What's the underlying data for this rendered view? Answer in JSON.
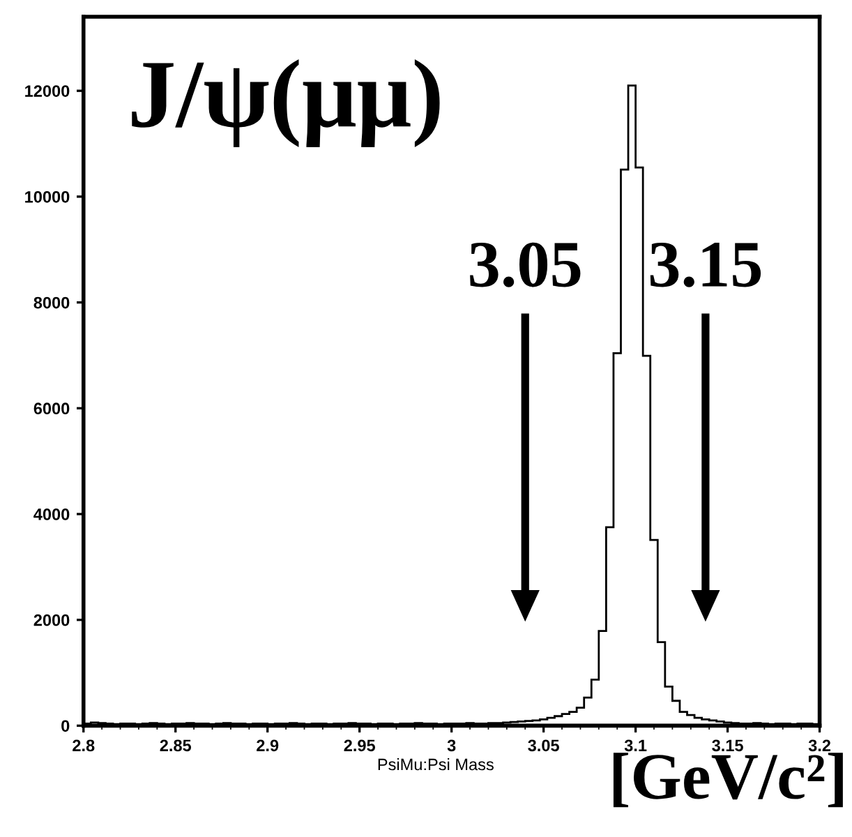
{
  "chart_data": {
    "type": "histogram",
    "title": "J/ψ(μμ)",
    "xlabel": "PsiMu:Psi Mass",
    "annotations": [
      "3.05",
      "3.15",
      "[GeV/c²]"
    ],
    "bins": [
      2.8,
      2.804,
      2.808,
      2.812,
      2.816,
      2.82,
      2.824,
      2.828,
      2.832,
      2.836,
      2.84,
      2.844,
      2.848,
      2.852,
      2.856,
      2.86,
      2.864,
      2.868,
      2.872,
      2.876,
      2.88,
      2.884,
      2.888,
      2.892,
      2.896,
      2.9,
      2.904,
      2.908,
      2.912,
      2.916,
      2.92,
      2.924,
      2.928,
      2.932,
      2.936,
      2.94,
      2.944,
      2.948,
      2.952,
      2.956,
      2.96,
      2.964,
      2.968,
      2.972,
      2.976,
      2.98,
      2.984,
      2.988,
      2.992,
      2.996,
      3.0,
      3.004,
      3.008,
      3.012,
      3.016,
      3.02,
      3.024,
      3.028,
      3.032,
      3.036,
      3.04,
      3.044,
      3.048,
      3.052,
      3.056,
      3.06,
      3.064,
      3.068,
      3.072,
      3.076,
      3.08,
      3.084,
      3.088,
      3.092,
      3.096,
      3.1,
      3.104,
      3.108,
      3.112,
      3.116,
      3.12,
      3.124,
      3.128,
      3.132,
      3.136,
      3.14,
      3.144,
      3.148,
      3.152,
      3.156,
      3.16,
      3.164,
      3.168,
      3.172,
      3.176,
      3.18,
      3.184,
      3.188,
      3.192,
      3.196,
      3.2
    ],
    "values": [
      40,
      60,
      50,
      40,
      30,
      40,
      40,
      30,
      40,
      50,
      40,
      30,
      40,
      40,
      50,
      40,
      40,
      30,
      40,
      50,
      40,
      40,
      30,
      40,
      40,
      30,
      40,
      40,
      50,
      40,
      30,
      40,
      40,
      30,
      40,
      40,
      50,
      40,
      40,
      30,
      40,
      40,
      30,
      40,
      40,
      50,
      40,
      40,
      30,
      40,
      40,
      40,
      50,
      40,
      40,
      50,
      50,
      60,
      70,
      80,
      90,
      100,
      120,
      150,
      180,
      220,
      260,
      340,
      530,
      870,
      1790,
      3750,
      7040,
      10510,
      12100,
      10550,
      6990,
      3510,
      1580,
      740,
      470,
      260,
      200,
      150,
      120,
      100,
      80,
      60,
      50,
      40,
      40,
      50,
      40,
      30,
      40,
      40,
      30,
      40,
      40,
      30
    ],
    "color": "#000000",
    "xlim": [
      2.8,
      3.2
    ],
    "ylim": [
      0,
      13400
    ],
    "xticks": [
      2.8,
      2.85,
      2.9,
      2.95,
      3,
      3.05,
      3.1,
      3.15,
      3.2
    ],
    "yticks": [
      0,
      2000,
      4000,
      6000,
      8000,
      10000,
      12000
    ],
    "grid": false,
    "legend": false
  }
}
